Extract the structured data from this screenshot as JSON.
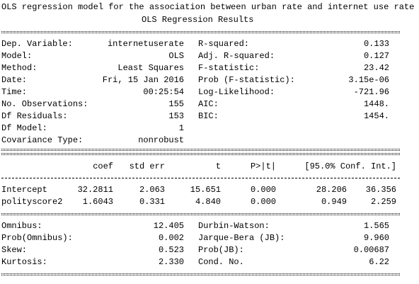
{
  "header": {
    "title": "OLS regression model for the association between urban rate and internet use rate",
    "subtitle": "OLS Regression Results"
  },
  "model_info": {
    "rows": [
      [
        "Dep. Variable:",
        "internetuserate",
        "R-squared:",
        "0.133"
      ],
      [
        "Model:",
        "OLS",
        "Adj. R-squared:",
        "0.127"
      ],
      [
        "Method:",
        "Least Squares",
        "F-statistic:",
        "23.42"
      ],
      [
        "Date:",
        "Fri, 15 Jan 2016",
        "Prob (F-statistic):",
        "3.15e-06"
      ],
      [
        "Time:",
        "00:25:54",
        "Log-Likelihood:",
        "-721.96"
      ],
      [
        "No. Observations:",
        "155",
        "AIC:",
        "1448."
      ],
      [
        "Df Residuals:",
        "153",
        "BIC:",
        "1454."
      ],
      [
        "Df Model:",
        "1"
      ],
      [
        "Covariance Type:",
        "nonrobust"
      ]
    ]
  },
  "coefficients": {
    "columns": [
      "coef",
      "std err",
      "t",
      "P>|t|",
      "[95.0% Conf. Int.]"
    ],
    "rows": [
      [
        "Intercept",
        "32.2811",
        "2.063",
        "15.651",
        "0.000",
        "28.206",
        "36.356"
      ],
      [
        "polityscore2",
        "1.6043",
        "0.331",
        "4.840",
        "0.000",
        "0.949",
        "2.259"
      ]
    ]
  },
  "diagnostics": {
    "rows": [
      [
        "Omnibus:",
        "12.405",
        "Durbin-Watson:",
        "1.565"
      ],
      [
        "Prob(Omnibus):",
        "0.002",
        "Jarque-Bera (JB):",
        "9.960"
      ],
      [
        "Skew:",
        "0.523",
        "Prob(JB):",
        "0.00687"
      ],
      [
        "Kurtosis:",
        "2.330",
        "Cond. No.",
        "6.22"
      ]
    ]
  }
}
